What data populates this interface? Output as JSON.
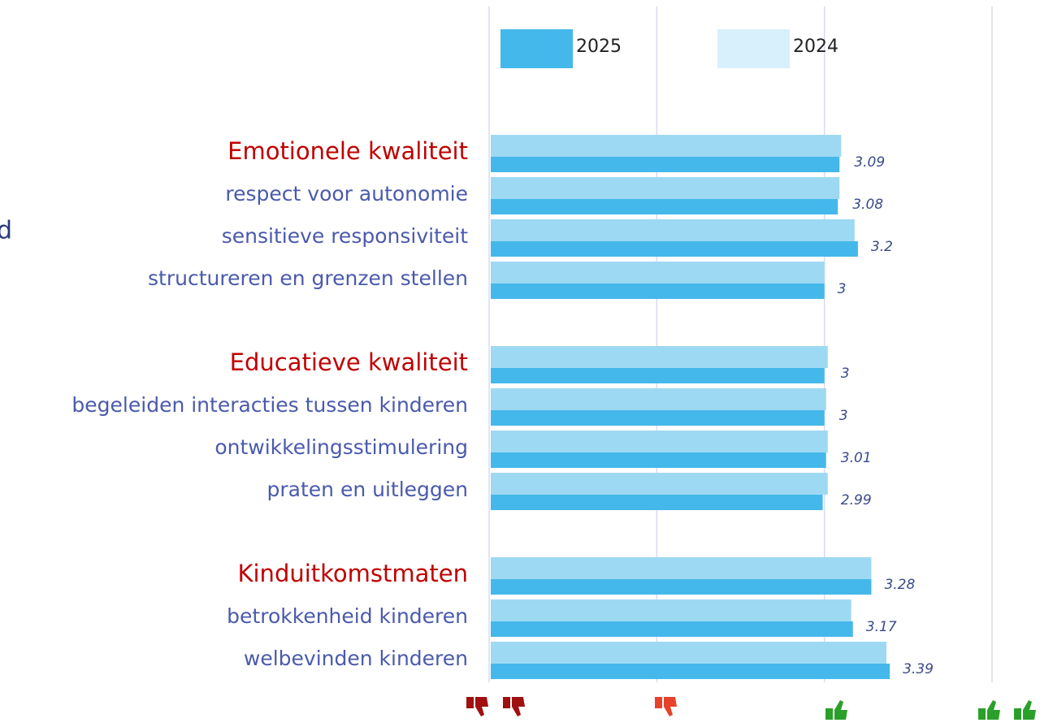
{
  "chart_data": {
    "type": "hbar",
    "side_text": "d",
    "categories": [
      "Emotionele kwaliteit",
      "respect voor autonomie",
      "sensitieve responsiviteit",
      "structureren en grenzen stellen",
      "Educatieve kwaliteit",
      "begeleiden interacties tussen kinderen",
      "ontwikkelingsstimulering",
      "praten en uitleggen",
      "Kinduitkomstmaten",
      "betrokkenheid kinderen",
      "welbevinden kinderen"
    ],
    "category_colors": [
      "#c00000",
      "#4a5aad",
      "#4a5aad",
      "#4a5aad",
      "#c00000",
      "#4a5aad",
      "#4a5aad",
      "#4a5aad",
      "#c00000",
      "#4a5aad",
      "#4a5aad"
    ],
    "series": [
      {
        "name": "2025",
        "color": "#44b8ea",
        "values": [
          3.09,
          3.08,
          3.2,
          3,
          3,
          3,
          3.01,
          2.99,
          3.28,
          3.17,
          3.39
        ]
      },
      {
        "name": "2024",
        "color": "#9ed9f3",
        "values": [
          3.1,
          3.09,
          3.18,
          3.0,
          3.02,
          3.01,
          3.02,
          3.02,
          3.28,
          3.16,
          3.37
        ]
      }
    ],
    "xlim": [
      1,
      4
    ],
    "xticks": [
      1,
      2,
      3,
      4
    ],
    "grid": true
  }
}
